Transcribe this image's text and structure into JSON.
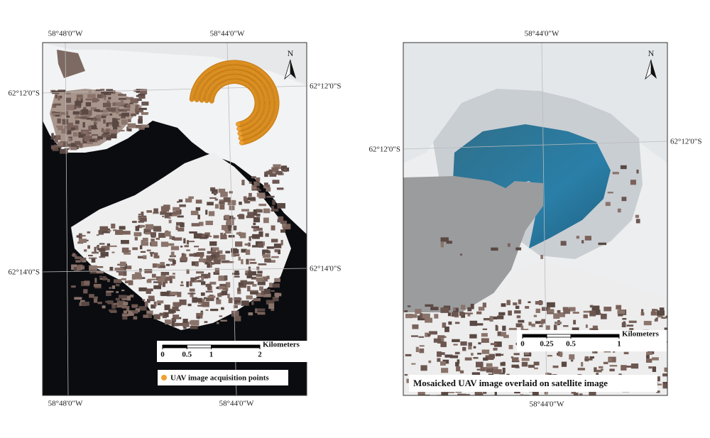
{
  "left_map": {
    "graticule": {
      "top": [
        "58°48'0\"W",
        "58°44'0\"W"
      ],
      "left": [
        "62°12'0\"S",
        "62°14'0\"S"
      ],
      "right": [
        "62°12'0\"S",
        "62°14'0\"S"
      ],
      "bottom": [
        "58°48'0\"W",
        "58°44'0\"W"
      ]
    },
    "north": "N",
    "scale_bar": {
      "ticks": [
        0,
        0.5,
        1,
        2
      ],
      "unit": "Kilometers"
    },
    "legend": "UAV image acquisition points"
  },
  "right_map": {
    "graticule": {
      "top": [
        "58°44'0\"W"
      ],
      "left": [
        "62°12'0\"S"
      ],
      "right": [
        "62°12'0\"S"
      ],
      "bottom": [
        "58°44'0\"W"
      ]
    },
    "north": "N",
    "scale_bar": {
      "ticks": [
        0,
        0.25,
        0.5,
        1
      ],
      "unit": "Kilometers"
    },
    "caption": "Mosaicked UAV image overlaid on satellite image"
  }
}
